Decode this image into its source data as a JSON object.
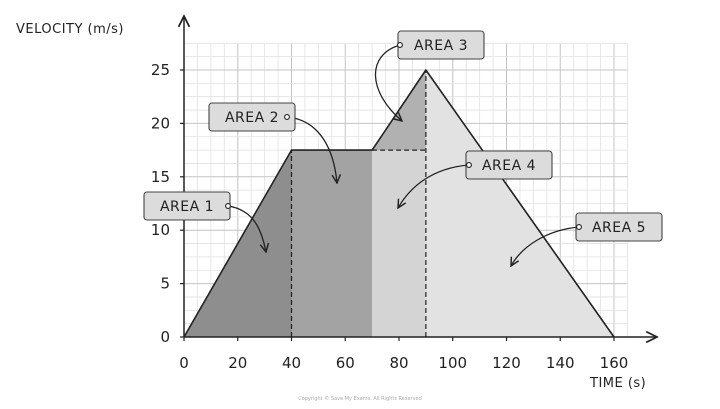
{
  "chart_data": {
    "type": "area",
    "xlabel": "TIME (s)",
    "ylabel": "VELOCITY (m/s)",
    "xlim": [
      0,
      160
    ],
    "ylim": [
      0,
      25
    ],
    "grid": true,
    "x_ticks": [
      0,
      20,
      40,
      60,
      80,
      100,
      120,
      140,
      160
    ],
    "y_ticks": [
      0,
      5,
      10,
      15,
      20,
      25
    ],
    "series": [
      {
        "points": [
          [
            0,
            0
          ],
          [
            40,
            17.5
          ],
          [
            70,
            17.5
          ],
          [
            90,
            25
          ],
          [
            160,
            0
          ]
        ]
      }
    ],
    "areas": [
      {
        "label": "AREA 1",
        "x": [
          0,
          40
        ],
        "color": "#8e8e8e",
        "poly": [
          [
            0,
            0
          ],
          [
            40,
            17.5
          ],
          [
            40,
            0
          ]
        ]
      },
      {
        "label": "AREA 2",
        "x": [
          40,
          70
        ],
        "color": "#a3a3a3",
        "poly": [
          [
            40,
            0
          ],
          [
            40,
            17.5
          ],
          [
            70,
            17.5
          ],
          [
            70,
            0
          ]
        ]
      },
      {
        "label": "AREA 3",
        "x": [
          70,
          90
        ],
        "color": "#b1b1b1",
        "poly": [
          [
            70,
            17.5
          ],
          [
            90,
            25
          ],
          [
            90,
            17.5
          ]
        ]
      },
      {
        "label": "AREA 4",
        "x": [
          70,
          90
        ],
        "color": "#d4d4d4",
        "poly": [
          [
            70,
            0
          ],
          [
            70,
            17.5
          ],
          [
            90,
            17.5
          ],
          [
            90,
            0
          ]
        ]
      },
      {
        "label": "AREA 5",
        "x": [
          90,
          160
        ],
        "color": "#e2e2e2",
        "poly": [
          [
            90,
            0
          ],
          [
            90,
            25
          ],
          [
            160,
            0
          ]
        ]
      }
    ],
    "dashed_lines": [
      [
        [
          40,
          0
        ],
        [
          40,
          17.5
        ]
      ],
      [
        [
          70,
          17.5
        ],
        [
          90,
          17.5
        ]
      ],
      [
        [
          90,
          0
        ],
        [
          90,
          25
        ]
      ]
    ]
  },
  "footer": {
    "copyright": "Copyright © Save My Exams. All Rights Reserved"
  },
  "colors": {
    "axis": "#222222",
    "grid": "#cfcfcf",
    "label_box": "#dcdcdc"
  }
}
